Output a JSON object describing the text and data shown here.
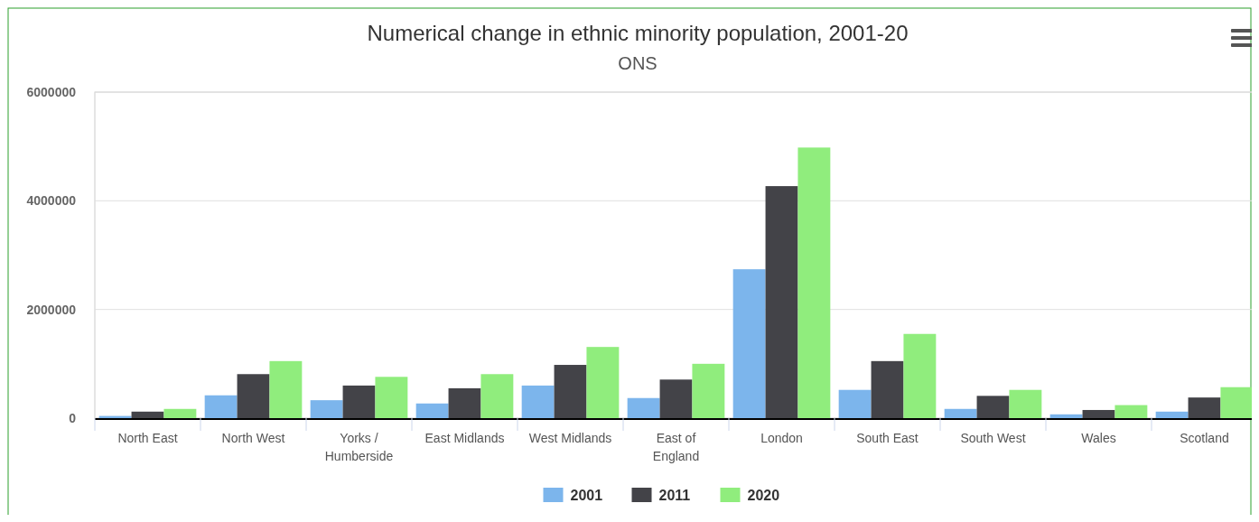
{
  "chart_data": {
    "type": "bar",
    "title": "Numerical change in ethnic minority population, 2001-20",
    "subtitle": "ONS",
    "categories": [
      "North East",
      "North West",
      "Yorks / Humberside",
      "East Midlands",
      "West Midlands",
      "East of England",
      "London",
      "South East",
      "South West",
      "Wales",
      "Scotland"
    ],
    "series": [
      {
        "name": "2001",
        "color": "#7cb5ec",
        "values": [
          40000,
          420000,
          330000,
          270000,
          600000,
          370000,
          2740000,
          520000,
          170000,
          70000,
          120000
        ]
      },
      {
        "name": "2011",
        "color": "#434348",
        "values": [
          120000,
          810000,
          600000,
          550000,
          980000,
          710000,
          4270000,
          1050000,
          410000,
          150000,
          380000
        ]
      },
      {
        "name": "2020",
        "color": "#90ed7d",
        "values": [
          170000,
          1050000,
          760000,
          810000,
          1310000,
          1000000,
          4980000,
          1550000,
          520000,
          240000,
          570000
        ]
      }
    ],
    "ylim": [
      0,
      6000000
    ],
    "yticks": [
      0,
      2000000,
      4000000,
      6000000
    ],
    "grid": "y",
    "legend": "bottom"
  }
}
